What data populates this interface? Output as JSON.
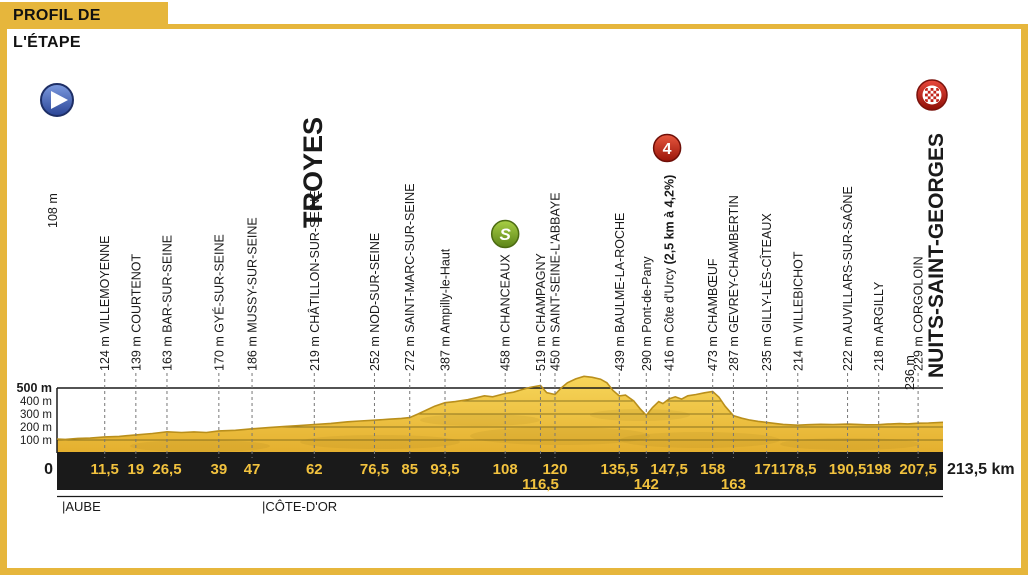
{
  "header": {
    "title": "PROFIL DE L'ÉTAPE"
  },
  "start": {
    "name": "TROYES",
    "elevation": "108 m"
  },
  "finish": {
    "name": "NUITS-SAINT-GEORGES",
    "elevation": "236 m"
  },
  "axis": {
    "y_tick_labels": [
      "500 m",
      "400 m",
      "300 m",
      "200 m",
      "100 m"
    ],
    "y_tick_values": [
      500,
      400,
      300,
      200,
      100
    ],
    "origin_label": "0",
    "total_label": "213,5 km"
  },
  "regions": [
    {
      "label": "|AUBE",
      "km": 1.2
    },
    {
      "label": "|CÔTE-D'OR",
      "km": 49.4
    }
  ],
  "waypoints": [
    {
      "km": 11.5,
      "km_label": "11,5",
      "elevation": "124 m",
      "name": "VILLEMOYENNE",
      "row": 1
    },
    {
      "km": 19,
      "km_label": "19",
      "elevation": "139 m",
      "name": "COURTENOT",
      "row": 1
    },
    {
      "km": 26.5,
      "km_label": "26,5",
      "elevation": "163 m",
      "name": "BAR-SUR-SEINE",
      "row": 1
    },
    {
      "km": 39,
      "km_label": "39",
      "elevation": "170 m",
      "name": "GYÉ-SUR-SEINE",
      "row": 1
    },
    {
      "km": 47,
      "km_label": "47",
      "elevation": "186 m",
      "name": "MUSSY-SUR-SEINE",
      "row": 1
    },
    {
      "km": 62,
      "km_label": "62",
      "elevation": "219 m",
      "name": "CHÂTILLON-SUR-SEINE",
      "row": 1
    },
    {
      "km": 76.5,
      "km_label": "76,5",
      "elevation": "252 m",
      "name": "NOD-SUR-SEINE",
      "row": 1
    },
    {
      "km": 85,
      "km_label": "85",
      "elevation": "272 m",
      "name": "SAINT-MARC-SUR-SEINE",
      "row": 1
    },
    {
      "km": 93.5,
      "km_label": "93,5",
      "elevation": "387 m",
      "name": "Ampilly-le-Haut",
      "row": 1
    },
    {
      "km": 108,
      "km_label": "108",
      "elevation": "458 m",
      "name": "CHANCEAUX",
      "row": 1,
      "icon": "sprint"
    },
    {
      "km": 116.5,
      "km_label": "116,5",
      "elevation": "519 m",
      "name": "CHAMPAGNY",
      "row": 2
    },
    {
      "km": 120,
      "km_label": "120",
      "elevation": "450 m",
      "name": "SAINT-SEINE-L'ABBAYE",
      "row": 1
    },
    {
      "km": 135.5,
      "km_label": "135,5",
      "elevation": "439 m",
      "name": "BAULME-LA-ROCHE",
      "row": 1
    },
    {
      "km": 142,
      "km_label": "142",
      "elevation": "290 m",
      "name": "Pont-de-Pany",
      "row": 2
    },
    {
      "km": 147.5,
      "km_label": "147,5",
      "elevation": "416 m",
      "name": "Côte d'Urcy",
      "note": "(2,5 km à 4,2%)",
      "row": 1,
      "icon": "cat4"
    },
    {
      "km": 158,
      "km_label": "158",
      "elevation": "473 m",
      "name": "CHAMBŒUF",
      "row": 1
    },
    {
      "km": 163,
      "km_label": "163",
      "elevation": "287 m",
      "name": "GEVREY-CHAMBERTIN",
      "row": 2
    },
    {
      "km": 171,
      "km_label": "171",
      "elevation": "235 m",
      "name": "GILLY-LÈS-CÎTEAUX",
      "row": 1
    },
    {
      "km": 178.5,
      "km_label": "178,5",
      "elevation": "214 m",
      "name": "VILLEBICHOT",
      "row": 1
    },
    {
      "km": 190.5,
      "km_label": "190,5",
      "elevation": "222 m",
      "name": "AUVILLARS-SUR-SAÔNE",
      "row": 1
    },
    {
      "km": 198,
      "km_label": "198",
      "elevation": "218 m",
      "name": "ARGILLY",
      "row": 1
    },
    {
      "km": 207.5,
      "km_label": "207,5",
      "elevation": "229 m",
      "name": "CORGOLOIN",
      "row": 1
    }
  ],
  "icon_glyphs": {
    "sprint": "S",
    "cat4": "4"
  },
  "colors": {
    "accent_yellow": "#E6B63C",
    "profile_top": "#F7D65A",
    "profile_bottom": "#E4AF2E",
    "profile_edge": "#B98F1C",
    "km_bar": "#1A1A1A",
    "km_text": "#F2C23E",
    "text_dark": "#1A1A1A",
    "guide_gray": "#777777",
    "sprint_green_light": "#A8CF45",
    "sprint_green_dark": "#5C8418",
    "cat_red_light": "#E8583F",
    "cat_red_dark": "#991409",
    "start_blue_light": "#7D9BE0",
    "start_blue_dark": "#2A4495",
    "finish_red": "#C1241A"
  },
  "chart_data": {
    "type": "area",
    "title": "PROFIL DE L'ÉTAPE",
    "xlabel": "km",
    "ylabel": "m",
    "xlim": [
      0,
      213.5
    ],
    "ylim": [
      0,
      600
    ],
    "y_gridlines": [
      100,
      200,
      300,
      400,
      500
    ],
    "start_point": {
      "km": 0,
      "elev": 108,
      "name": "TROYES"
    },
    "finish_point": {
      "km": 213.5,
      "elev": 236,
      "name": "NUITS-SAINT-GEORGES"
    },
    "profile_km": [
      0,
      2,
      5,
      8,
      11.5,
      15,
      19,
      23,
      26.5,
      30,
      33,
      36,
      39,
      43,
      47,
      51,
      55,
      58,
      62,
      66,
      70,
      73,
      76.5,
      80,
      83,
      85,
      87,
      89,
      91,
      93.5,
      96,
      99,
      101,
      103,
      105,
      106.5,
      108,
      110,
      112,
      114,
      116.5,
      118,
      120,
      121.5,
      123,
      125,
      127,
      129,
      131,
      132.5,
      134,
      135.5,
      137,
      139,
      140.5,
      142,
      143.5,
      145,
      146,
      147.5,
      149,
      150.5,
      152,
      154,
      156,
      158,
      159.5,
      161,
      163,
      165,
      167,
      169,
      171,
      173,
      175,
      178.5,
      181,
      184,
      187,
      190.5,
      193,
      195,
      198,
      200,
      203,
      205,
      207.5,
      210,
      213.5
    ],
    "profile_elev": [
      108,
      105,
      112,
      115,
      124,
      128,
      139,
      150,
      163,
      158,
      162,
      158,
      170,
      175,
      186,
      195,
      205,
      210,
      219,
      228,
      240,
      246,
      252,
      260,
      266,
      272,
      300,
      330,
      360,
      387,
      395,
      410,
      425,
      440,
      432,
      445,
      458,
      468,
      488,
      505,
      519,
      465,
      450,
      500,
      540,
      570,
      590,
      582,
      568,
      540,
      480,
      439,
      445,
      400,
      340,
      290,
      350,
      395,
      380,
      416,
      432,
      415,
      440,
      450,
      463,
      473,
      430,
      360,
      287,
      268,
      253,
      243,
      235,
      228,
      220,
      214,
      218,
      221,
      219,
      222,
      220,
      217,
      218,
      222,
      226,
      224,
      229,
      231,
      236
    ],
    "named_points": [
      {
        "km": 11.5,
        "elev": 124,
        "name": "Villemoyenne"
      },
      {
        "km": 19,
        "elev": 139,
        "name": "Courtenot"
      },
      {
        "km": 26.5,
        "elev": 163,
        "name": "Bar-sur-Seine"
      },
      {
        "km": 39,
        "elev": 170,
        "name": "Gyé-sur-Seine"
      },
      {
        "km": 47,
        "elev": 186,
        "name": "Mussy-sur-Seine"
      },
      {
        "km": 62,
        "elev": 219,
        "name": "Châtillon-sur-Seine"
      },
      {
        "km": 76.5,
        "elev": 252,
        "name": "Nod-sur-Seine"
      },
      {
        "km": 85,
        "elev": 272,
        "name": "Saint-Marc-sur-Seine"
      },
      {
        "km": 93.5,
        "elev": 387,
        "name": "Ampilly-le-Haut"
      },
      {
        "km": 108,
        "elev": 458,
        "name": "Chanceaux (sprint)"
      },
      {
        "km": 116.5,
        "elev": 519,
        "name": "Champagny"
      },
      {
        "km": 120,
        "elev": 450,
        "name": "Saint-Seine-l'Abbaye"
      },
      {
        "km": 135.5,
        "elev": 439,
        "name": "Baulme-la-Roche"
      },
      {
        "km": 142,
        "elev": 290,
        "name": "Pont-de-Pany"
      },
      {
        "km": 147.5,
        "elev": 416,
        "name": "Côte d'Urcy, cat. 4, 2,5 km à 4,2%"
      },
      {
        "km": 158,
        "elev": 473,
        "name": "Chambœuf"
      },
      {
        "km": 163,
        "elev": 287,
        "name": "Gevrey-Chambertin"
      },
      {
        "km": 171,
        "elev": 235,
        "name": "Gilly-lès-Cîteaux"
      },
      {
        "km": 178.5,
        "elev": 214,
        "name": "Villebichot"
      },
      {
        "km": 190.5,
        "elev": 222,
        "name": "Auvillars-sur-Saône"
      },
      {
        "km": 198,
        "elev": 218,
        "name": "Argilly"
      },
      {
        "km": 207.5,
        "elev": 229,
        "name": "Corgoloin"
      }
    ]
  }
}
